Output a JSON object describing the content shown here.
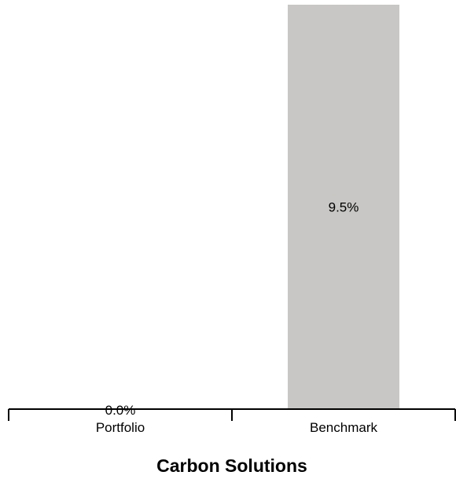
{
  "chart_data": {
    "type": "bar",
    "title": "Carbon Solutions",
    "categories": [
      "Portfolio",
      "Benchmark"
    ],
    "values": [
      0.0,
      9.5
    ],
    "data_labels": [
      "0.0%",
      "9.5%"
    ],
    "ylim": [
      0,
      9.5
    ],
    "xlabel": "",
    "ylabel": "",
    "grid": false,
    "legend": "none",
    "colors": {
      "bar": "#c8c7c5",
      "axis": "#000000",
      "text": "#000000"
    }
  }
}
